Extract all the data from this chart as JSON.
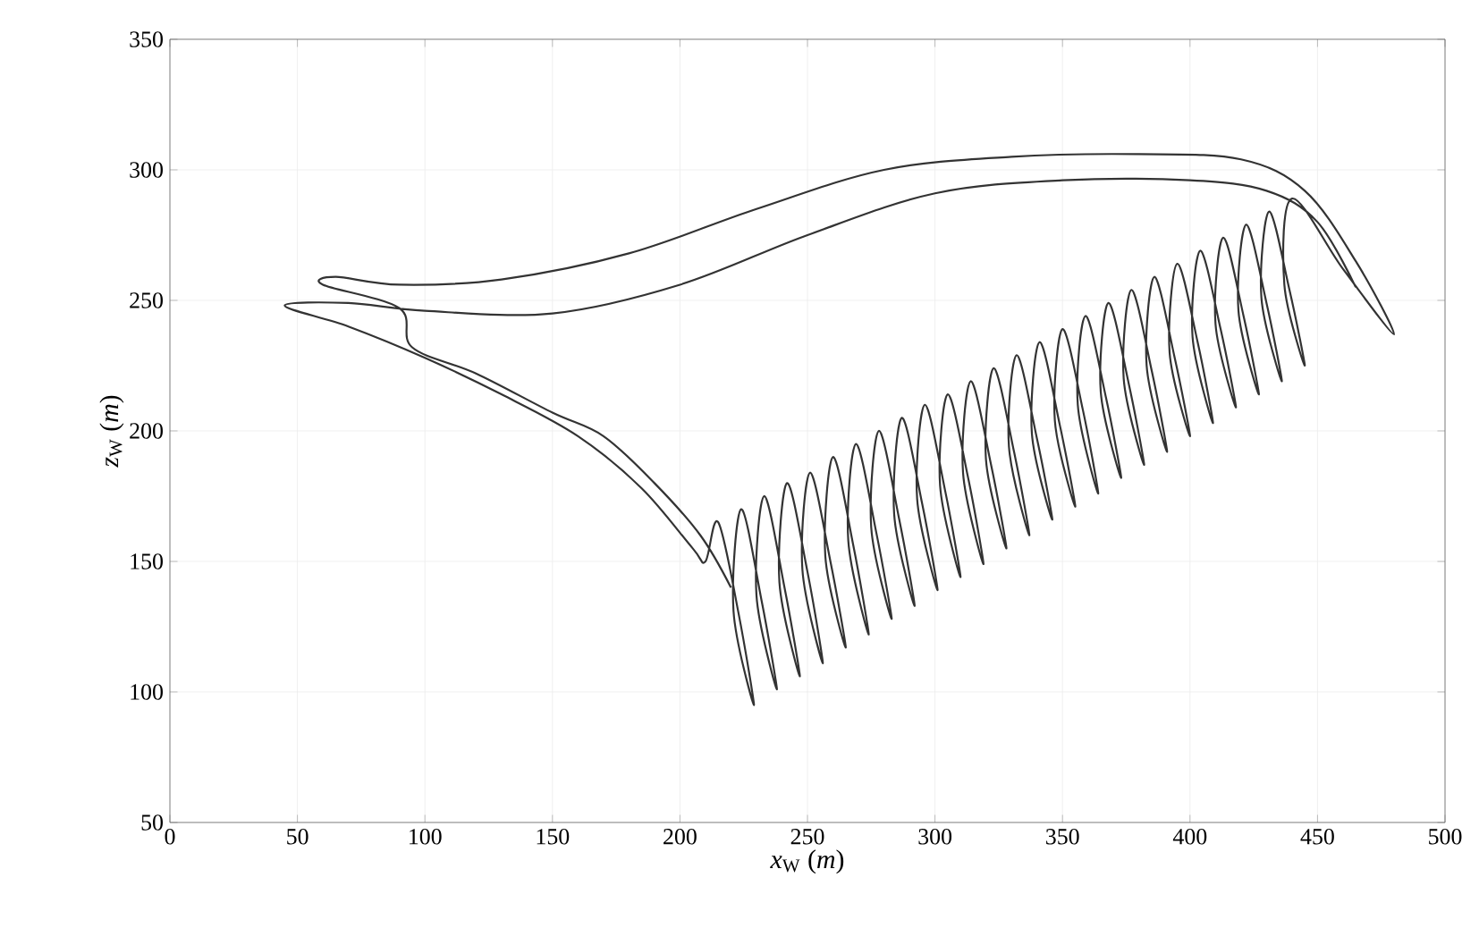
{
  "chart_data": {
    "type": "line",
    "xlabel": "*x*$_{W}$ (*m*)",
    "ylabel": "*z*$_{W}$ (*m*)",
    "xlim": [
      0,
      500
    ],
    "ylim": [
      50,
      350
    ],
    "xticks": [
      0,
      50,
      100,
      150,
      200,
      250,
      300,
      350,
      400,
      450,
      500
    ],
    "yticks": [
      50,
      100,
      150,
      200,
      250,
      300,
      350
    ],
    "grid": true,
    "marker": "none",
    "line_style": "solid",
    "series": [
      {
        "color": "#333333",
        "x": [
          465,
          450,
          430,
          400,
          350,
          300,
          250,
          200,
          150,
          100,
          70,
          45,
          70,
          100,
          130,
          160,
          185,
          205,
          210,
          215,
          223,
          229,
          221,
          224,
          232,
          238,
          230,
          233,
          241,
          247,
          239,
          242,
          250,
          256,
          248,
          251,
          259,
          265,
          257,
          260,
          268,
          274,
          266,
          269,
          277,
          283,
          275,
          278,
          286,
          292,
          284,
          287,
          295,
          301,
          293,
          296,
          304,
          310,
          302,
          305,
          313,
          319,
          311,
          314,
          322,
          328,
          320,
          323,
          331,
          337,
          329,
          332,
          340,
          346,
          338,
          341,
          349,
          355,
          347,
          350,
          358,
          364,
          356,
          359,
          367,
          373,
          365,
          368,
          376,
          382,
          374,
          377,
          385,
          391,
          383,
          386,
          394,
          400,
          392,
          395,
          403,
          409,
          401,
          404,
          412,
          418,
          410,
          413,
          421,
          427,
          419,
          422,
          430,
          436,
          428,
          431,
          439,
          445,
          437,
          440,
          460,
          480,
          465,
          445,
          420,
          380,
          330,
          280,
          230,
          180,
          130,
          90,
          65,
          60,
          90,
          95,
          120,
          150,
          170,
          190,
          208,
          220
        ],
        "values": [
          255,
          280,
          292,
          296,
          296,
          291,
          275,
          256,
          245,
          246,
          249,
          248,
          240,
          228,
          214,
          198,
          178,
          155,
          150,
          165,
          130,
          95,
          131,
          170,
          135,
          101,
          137,
          175,
          140,
          106,
          142,
          180,
          146,
          111,
          147,
          184,
          150,
          117,
          152,
          190,
          156,
          122,
          158,
          195,
          161,
          128,
          163,
          200,
          166,
          133,
          168,
          205,
          172,
          139,
          174,
          210,
          177,
          144,
          179,
          214,
          182,
          149,
          184,
          219,
          187,
          155,
          189,
          224,
          192,
          160,
          194,
          229,
          197,
          166,
          199,
          234,
          202,
          171,
          204,
          239,
          208,
          176,
          210,
          244,
          213,
          182,
          215,
          249,
          218,
          187,
          220,
          254,
          223,
          192,
          225,
          259,
          228,
          198,
          230,
          264,
          234,
          203,
          236,
          269,
          239,
          209,
          241,
          274,
          244,
          214,
          246,
          279,
          249,
          219,
          251,
          284,
          254,
          225,
          256,
          289,
          262,
          237,
          265,
          292,
          304,
          306,
          305,
          300,
          285,
          268,
          258,
          256,
          259,
          256,
          247,
          232,
          222,
          207,
          198,
          180,
          160,
          140
        ]
      }
    ]
  }
}
